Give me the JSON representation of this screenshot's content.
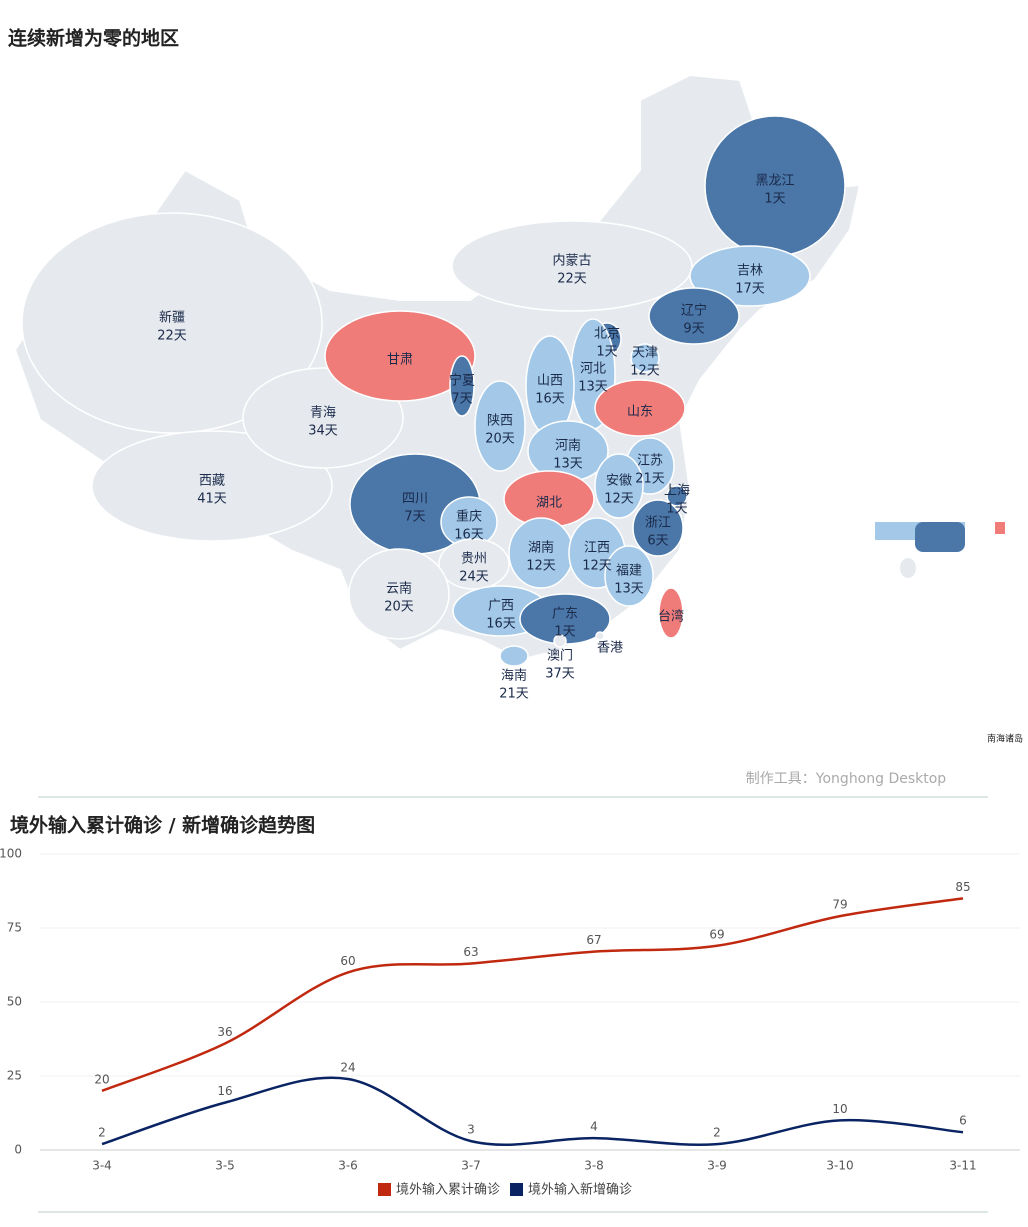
{
  "chart_data": [
    {
      "type": "map",
      "title": "连续新增为零的地区",
      "names": [
        "新疆",
        "西藏",
        "青海",
        "甘肃",
        "宁夏",
        "陕西",
        "内蒙古",
        "黑龙江",
        "吉林",
        "辽宁",
        "北京",
        "天津",
        "河北",
        "山西",
        "山东",
        "河南",
        "江苏",
        "安徽",
        "上海",
        "湖北",
        "四川",
        "重庆",
        "浙江",
        "湖南",
        "江西",
        "贵州",
        "福建",
        "云南",
        "广西",
        "广东",
        "台湾",
        "香港",
        "澳门",
        "海南"
      ],
      "values": [
        22,
        41,
        34,
        null,
        7,
        20,
        22,
        1,
        17,
        9,
        1,
        12,
        13,
        16,
        null,
        13,
        21,
        12,
        1,
        null,
        7,
        16,
        6,
        12,
        12,
        24,
        13,
        20,
        16,
        1,
        null,
        null,
        37,
        21
      ],
      "value_labels": [
        "22天",
        "41天",
        "34天",
        null,
        "7天",
        "20天",
        "22天",
        "1天",
        "17天",
        "9天",
        "1天",
        "12天",
        "13天",
        "16天",
        null,
        "13天",
        "21天",
        "12天",
        "1天",
        null,
        "7天",
        "16天",
        "6天",
        "12天",
        "12天",
        "24天",
        "13天",
        "20天",
        "16天",
        "1天",
        null,
        null,
        "37天",
        "21天"
      ],
      "colors": [
        "#e6eaee",
        "#e6eaee",
        "#e6eaee",
        "#f07c7a",
        "#4a76a8",
        "#a4c9e8",
        "#e6eaee",
        "#4a76a8",
        "#a4c9e8",
        "#4a76a8",
        "#4a76a8",
        "#a4c9e8",
        "#a4c9e8",
        "#a4c9e8",
        "#f07c7a",
        "#a4c9e8",
        "#a4c9e8",
        "#a4c9e8",
        "#4a76a8",
        "#f07c7a",
        "#4a76a8",
        "#a4c9e8",
        "#4a76a8",
        "#a4c9e8",
        "#a4c9e8",
        "#e6eaee",
        "#a4c9e8",
        "#e6eaee",
        "#a4c9e8",
        "#4a76a8",
        "#f07c7a",
        "#e6eaee",
        "#e6eaee",
        "#a4c9e8"
      ],
      "inset_label": "南海诸岛",
      "credit": "制作工具：Yonghong Desktop"
    },
    {
      "type": "line",
      "title": "境外输入累计确诊 / 新增确诊趋势图",
      "categories": [
        "3-4",
        "3-5",
        "3-6",
        "3-7",
        "3-8",
        "3-9",
        "3-10",
        "3-11"
      ],
      "series": [
        {
          "name": "境外输入累计确诊",
          "color": "#c0290f",
          "values": [
            20,
            36,
            60,
            63,
            67,
            69,
            79,
            85
          ]
        },
        {
          "name": "境外输入新增确诊",
          "color": "#0a2463",
          "values": [
            2,
            16,
            24,
            3,
            4,
            2,
            10,
            6
          ]
        }
      ],
      "ylim": [
        0,
        100
      ],
      "yticks": [
        0,
        25,
        50,
        75,
        100
      ],
      "grid": true,
      "legend": "bottom"
    }
  ]
}
